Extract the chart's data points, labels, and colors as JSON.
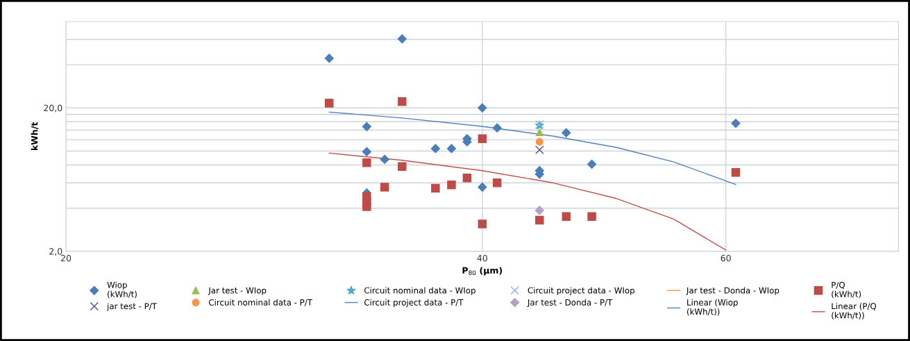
{
  "chart_data": {
    "type": "scatter",
    "xlabel": "P$_{80}$ (µm)",
    "ylabel": "kWh/t",
    "log": "xy",
    "grid": true,
    "legend": "bottom",
    "xlim": [
      20,
      80
    ],
    "xticks": [
      20,
      40,
      60
    ],
    "ylim": [
      2,
      80
    ],
    "yticks": [
      {
        "value": 2,
        "label": "2,0"
      },
      {
        "value": 4,
        "label": null
      },
      {
        "value": 6,
        "label": null
      },
      {
        "value": 8,
        "label": null
      },
      {
        "value": 10,
        "label": null
      },
      {
        "value": 12,
        "label": null
      },
      {
        "value": 14,
        "label": null
      },
      {
        "value": 16,
        "label": null
      },
      {
        "value": 18,
        "label": null
      },
      {
        "value": 20,
        "label": "20,0"
      },
      {
        "value": 40,
        "label": null
      },
      {
        "value": 60,
        "label": null
      }
    ],
    "series": [
      {
        "name": "Wiop\n(kWh/t)",
        "color": "#4a7ebb",
        "marker": "diamond",
        "x": [
          31,
          35,
          33,
          33,
          34,
          33,
          37,
          38,
          39,
          39,
          40,
          40,
          41,
          44,
          44,
          46,
          48,
          61
        ],
        "values": [
          44.3,
          60.5,
          14.8,
          9.9,
          8.75,
          5.1,
          10.4,
          10.4,
          12.2,
          11.6,
          20,
          5.6,
          14.5,
          7.3,
          6.9,
          13.4,
          8.1,
          15.6
        ]
      },
      {
        "name": "Jar test - WIop",
        "color": "#9bbb59",
        "marker": "triangle",
        "x": [
          44
        ],
        "values": [
          13.5
        ]
      },
      {
        "name": "Circuit nominal data - WIop",
        "color": "#4bacc6",
        "marker": "star",
        "x": [
          44
        ],
        "values": [
          15.1
        ]
      },
      {
        "name": "Circuit project data - WIop",
        "color": "#8eb4e3",
        "marker": "cross",
        "x": [
          44
        ],
        "values": [
          15.3
        ]
      },
      {
        "name": "Jar test - Donda - WIop",
        "color": "#f79646",
        "type": "line",
        "marker": "none"
      },
      {
        "name": "P/Q\n(kWh/t)",
        "color": "#be4b48",
        "marker": "square",
        "x": [
          31,
          35,
          33,
          33,
          33,
          33,
          34,
          35,
          37,
          38,
          39,
          40,
          40,
          41,
          44,
          46,
          48,
          61
        ],
        "values": [
          21.6,
          22.1,
          8.3,
          4.8,
          4.4,
          4.1,
          5.6,
          7.8,
          5.5,
          5.8,
          6.5,
          12.2,
          3.1,
          6.0,
          3.3,
          3.5,
          3.5,
          7.1
        ]
      },
      {
        "name": "jar test - P/T",
        "color": "#604a7b",
        "marker": "cross",
        "x": [
          44
        ],
        "values": [
          10.2
        ]
      },
      {
        "name": "Circuit nominal data - P/T",
        "color": "#f79646",
        "marker": "circle",
        "x": [
          44
        ],
        "values": [
          11.6
        ]
      },
      {
        "name": "Circuit project data - P/T",
        "color": "#4f81bd",
        "type": "line",
        "marker": "none"
      },
      {
        "name": "Jar test - Donda - P/T",
        "color": "#b3a2c7",
        "marker": "diamond",
        "x": [
          44
        ],
        "values": [
          3.86
        ]
      },
      {
        "name": "Linear (Wiop\n(kWh/t))",
        "color": "#4f81bd",
        "type": "line",
        "marker": "none",
        "x": [
          31,
          35,
          40,
          45,
          50,
          55,
          61
        ],
        "values": [
          18.7,
          17.0,
          14.85,
          12.7,
          10.6,
          8.4,
          5.85
        ]
      },
      {
        "name": "Linear (P/Q\n(kWh/t))",
        "color": "#c0504d",
        "type": "line",
        "marker": "none",
        "x": [
          31,
          35,
          40,
          45,
          50,
          55,
          60
        ],
        "values": [
          9.67,
          8.62,
          7.3,
          6.0,
          4.67,
          3.36,
          2.04
        ]
      }
    ]
  }
}
